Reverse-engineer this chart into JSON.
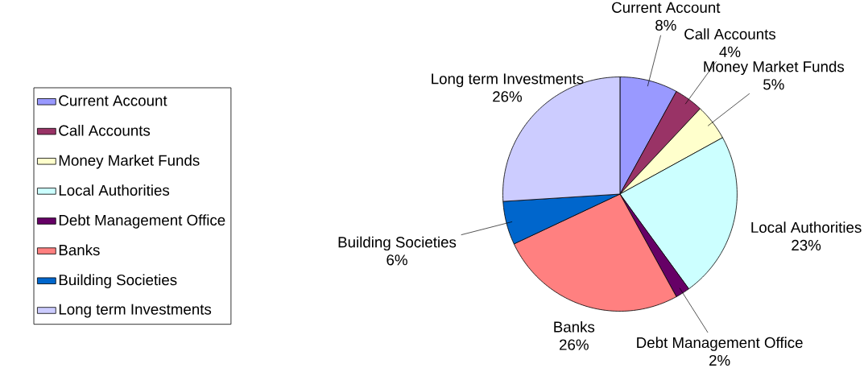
{
  "chart_data": {
    "type": "pie",
    "categories": [
      "Current Account",
      "Call Accounts",
      "Money Market Funds",
      "Local Authorities",
      "Debt Management Office",
      "Banks",
      "Building Societies",
      "Long term Investments"
    ],
    "values": [
      8,
      4,
      5,
      23,
      2,
      26,
      6,
      26
    ],
    "value_labels": [
      "8%",
      "4%",
      "5%",
      "23%",
      "2%",
      "26%",
      "6%",
      "26%"
    ],
    "colors": [
      "#9999ff",
      "#993366",
      "#ffffcc",
      "#ccffff",
      "#660066",
      "#ff8080",
      "#0066cc",
      "#ccccff"
    ],
    "legend": "left"
  }
}
